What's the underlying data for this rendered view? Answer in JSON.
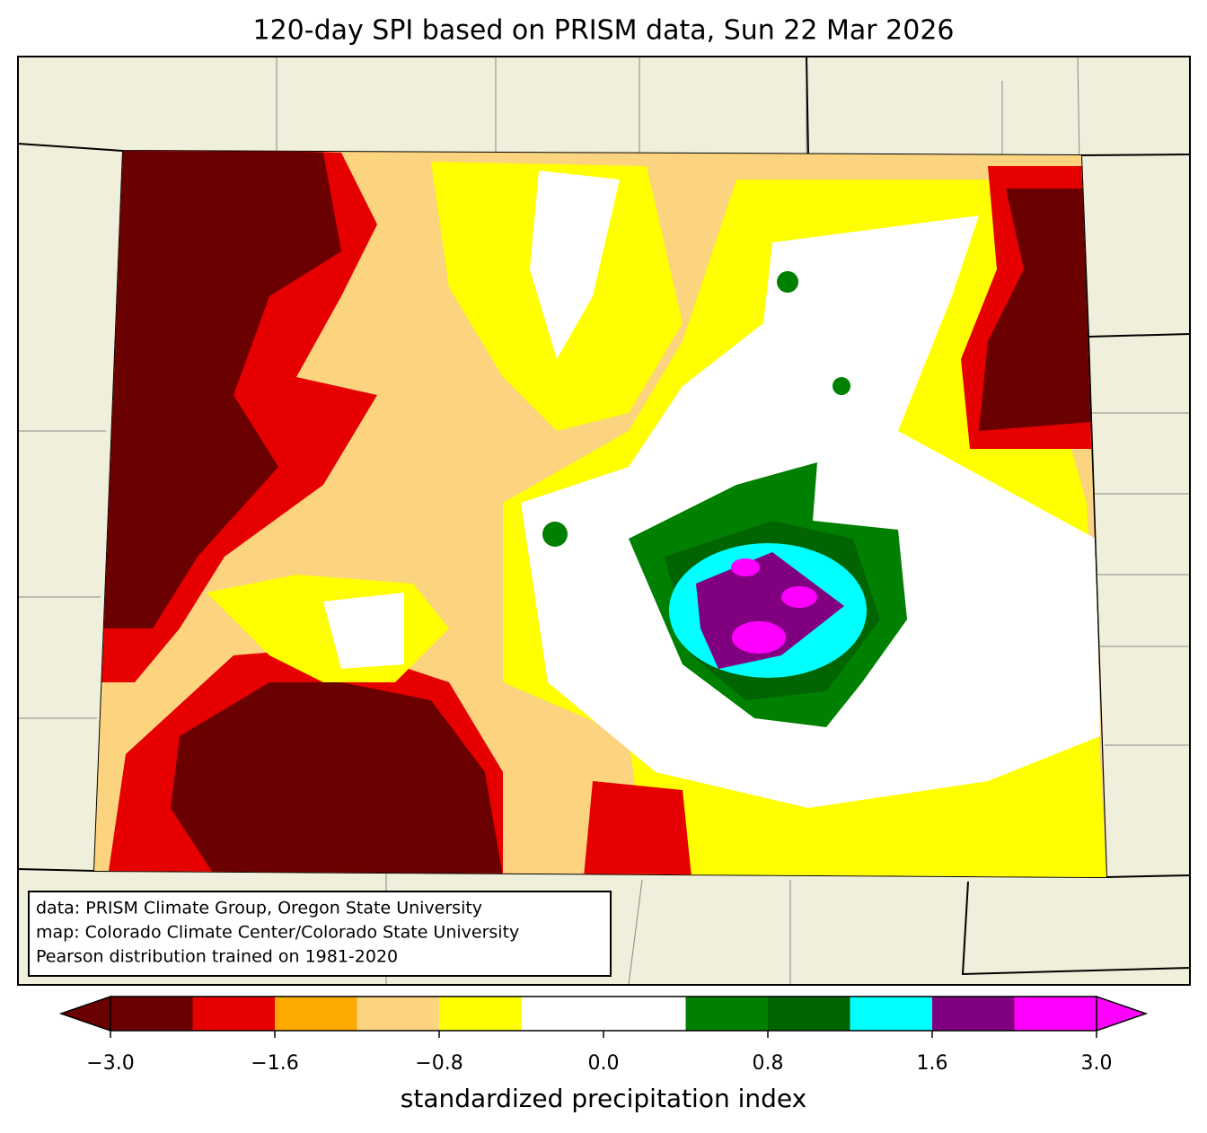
{
  "chart_data": {
    "type": "colorbar-map",
    "title": "120-day SPI based on PRISM data, Sun 22 Mar 2026",
    "attribution": [
      "data: PRISM Climate Group, Oregon State University",
      "map: Colorado Climate Center/Colorado State University",
      "Pearson distribution trained on 1981-2020"
    ],
    "colorbar_label": "standardized precipitation index",
    "levels": [
      -3.0,
      -2.0,
      -1.6,
      -1.3,
      -0.8,
      -0.5,
      0.0,
      0.5,
      0.8,
      1.3,
      1.6,
      2.0,
      3.0
    ],
    "colors": [
      "#6b0000",
      "#e60000",
      "#ffaa00",
      "#fcd37f",
      "#ffff00",
      "#ffffff",
      "#ffffff",
      "#008000",
      "#006400",
      "#00ffff",
      "#800080",
      "#ff00ff"
    ],
    "extend_under_color": "#6b0000",
    "extend_over_color": "#ff00ff",
    "ticks": [
      {
        "value": -3.0,
        "label": "−3.0"
      },
      {
        "value": -1.6,
        "label": "−1.6"
      },
      {
        "value": -0.8,
        "label": "−0.8"
      },
      {
        "value": 0.0,
        "label": "0.0"
      },
      {
        "value": 0.8,
        "label": "0.8"
      },
      {
        "value": 1.6,
        "label": "1.6"
      },
      {
        "value": 3.0,
        "label": "3.0"
      }
    ]
  }
}
